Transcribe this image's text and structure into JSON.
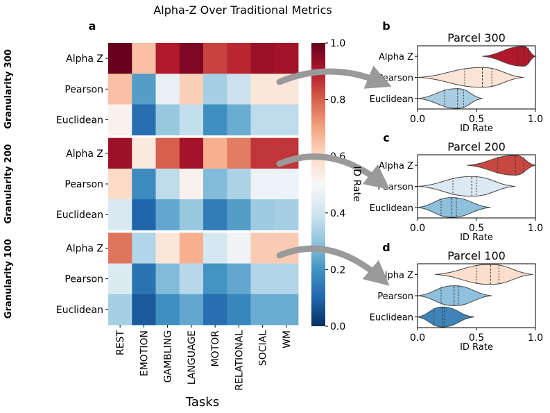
{
  "title": "Alpha-Z Over Traditional Metrics",
  "panel_labels": {
    "a": "a",
    "b": "b",
    "c": "c",
    "d": "d"
  },
  "heatmap": {
    "xlabel": "Tasks",
    "tasks": [
      "REST",
      "EMOTION",
      "GAMBLING",
      "LANGUAGE",
      "MOTOR",
      "RELATIONAL",
      "SOCIAL",
      "WM"
    ],
    "groups": [
      {
        "label": "Granularity 300",
        "rows": [
          "Alpha Z",
          "Pearson",
          "Euclidean"
        ]
      },
      {
        "label": "Granularity 200",
        "rows": [
          "Alpha Z",
          "Pearson",
          "Euclidean"
        ]
      },
      {
        "label": "Granularity 100",
        "rows": [
          "Alpha Z",
          "Pearson",
          "Euclidean"
        ]
      }
    ],
    "colorbar": {
      "label": "ID Rate",
      "ticks": [
        "0.0",
        "0.2",
        "0.4",
        "0.6",
        "0.8",
        "1.0"
      ]
    }
  },
  "chart_data": [
    {
      "type": "heatmap",
      "title": "Alpha-Z Over Traditional Metrics",
      "xlabel": "Tasks",
      "ylabel": "",
      "x": [
        "REST",
        "EMOTION",
        "GAMBLING",
        "LANGUAGE",
        "MOTOR",
        "RELATIONAL",
        "SOCIAL",
        "WM"
      ],
      "y": [
        "Alpha Z",
        "Pearson",
        "Euclidean",
        "Alpha Z",
        "Pearson",
        "Euclidean",
        "Alpha Z",
        "Pearson",
        "Euclidean"
      ],
      "y_groups": [
        "Granularity 300",
        "Granularity 200",
        "Granularity 100"
      ],
      "values": [
        [
          1.0,
          0.65,
          0.9,
          0.97,
          0.84,
          0.88,
          0.93,
          0.92
        ],
        [
          0.65,
          0.22,
          0.46,
          0.62,
          0.33,
          0.39,
          0.56,
          0.56
        ],
        [
          0.52,
          0.12,
          0.31,
          0.38,
          0.19,
          0.25,
          0.37,
          0.37
        ],
        [
          0.93,
          0.55,
          0.8,
          0.92,
          0.68,
          0.76,
          0.86,
          0.86
        ],
        [
          0.6,
          0.18,
          0.37,
          0.52,
          0.28,
          0.34,
          0.47,
          0.47
        ],
        [
          0.42,
          0.1,
          0.24,
          0.31,
          0.15,
          0.22,
          0.32,
          0.33
        ],
        [
          0.77,
          0.35,
          0.56,
          0.68,
          0.41,
          0.48,
          0.63,
          0.63
        ],
        [
          0.43,
          0.13,
          0.28,
          0.36,
          0.2,
          0.24,
          0.35,
          0.35
        ],
        [
          0.33,
          0.08,
          0.19,
          0.24,
          0.12,
          0.17,
          0.25,
          0.25
        ]
      ],
      "colorbar_label": "ID Rate",
      "vmin": 0.0,
      "vmax": 1.0,
      "colormap": "RdBu_r"
    },
    {
      "type": "violin",
      "title": "Parcel 300",
      "xlabel": "ID Rate",
      "xlim": [
        0.0,
        1.0
      ],
      "xticks": [
        "0.0",
        "0.5",
        "1.0"
      ],
      "series": [
        {
          "name": "Alpha Z",
          "color": "#b2182b",
          "range": [
            0.55,
            1.0
          ],
          "quartiles": [
            0.85,
            0.9,
            0.94
          ]
        },
        {
          "name": "Pearson",
          "color": "#fbe3d5",
          "range": [
            0.0,
            0.9
          ],
          "quartiles": [
            0.4,
            0.55,
            0.63
          ]
        },
        {
          "name": "Euclidean",
          "color": "#a9cde3",
          "range": [
            0.0,
            0.55
          ],
          "quartiles": [
            0.23,
            0.34,
            0.39
          ]
        }
      ]
    },
    {
      "type": "violin",
      "title": "Parcel 200",
      "xlabel": "ID Rate",
      "xlim": [
        0.0,
        1.0
      ],
      "xticks": [
        "0.0",
        "0.5",
        "1.0"
      ],
      "series": [
        {
          "name": "Alpha Z",
          "color": "#c94741",
          "range": [
            0.42,
            1.0
          ],
          "quartiles": [
            0.68,
            0.83,
            0.9
          ]
        },
        {
          "name": "Pearson",
          "color": "#dce9f2",
          "range": [
            0.0,
            0.83
          ],
          "quartiles": [
            0.3,
            0.46,
            0.5
          ]
        },
        {
          "name": "Euclidean",
          "color": "#8ebfdc",
          "range": [
            0.0,
            0.62
          ],
          "quartiles": [
            0.2,
            0.29,
            0.33
          ]
        }
      ]
    },
    {
      "type": "violin",
      "title": "Parcel 100",
      "xlabel": "ID Rate",
      "xlim": [
        0.0,
        1.0
      ],
      "xticks": [
        "0.0",
        "0.5",
        "1.0"
      ],
      "series": [
        {
          "name": "Alpha Z",
          "color": "#fbdfcc",
          "range": [
            0.15,
            0.98
          ],
          "quartiles": [
            0.5,
            0.62,
            0.69
          ]
        },
        {
          "name": "Pearson",
          "color": "#8fc0dd",
          "range": [
            0.0,
            0.63
          ],
          "quartiles": [
            0.2,
            0.31,
            0.35
          ]
        },
        {
          "name": "Euclidean",
          "color": "#3e84b9",
          "range": [
            0.0,
            0.48
          ],
          "quartiles": [
            0.14,
            0.21,
            0.23
          ]
        }
      ]
    }
  ]
}
